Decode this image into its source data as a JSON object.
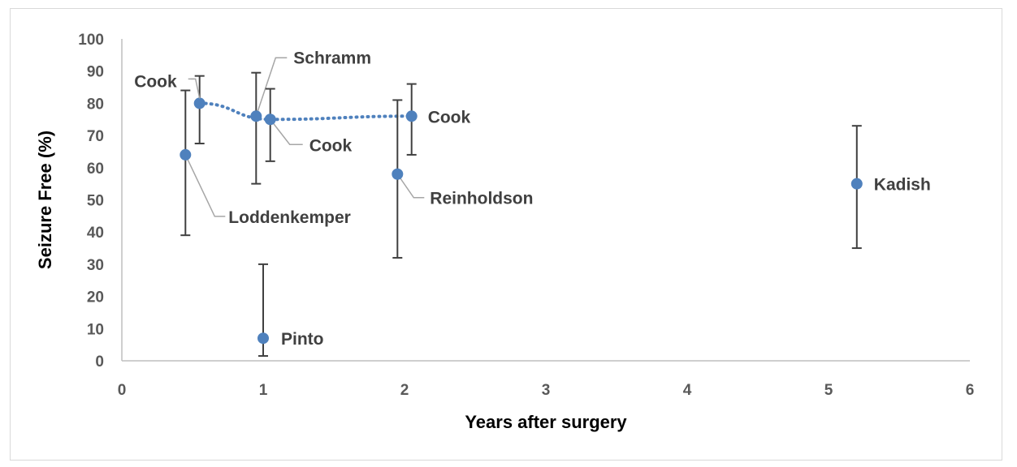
{
  "chart_data": {
    "type": "scatter",
    "title": "",
    "xlabel": "Years after surgery",
    "ylabel": "Seizure Free (%)",
    "xlim": [
      0,
      6
    ],
    "ylim": [
      0,
      100
    ],
    "x_ticks": [
      "0",
      "1",
      "2",
      "3",
      "4",
      "5",
      "6"
    ],
    "y_ticks": [
      "0",
      "10",
      "20",
      "30",
      "40",
      "50",
      "60",
      "70",
      "80",
      "90",
      "100"
    ],
    "grid": false,
    "legend": "none",
    "points": [
      {
        "label": "Cook",
        "x": 0.55,
        "y": 80,
        "err_low": 67.5,
        "err_high": 88.5
      },
      {
        "label": "Loddenkemper",
        "x": 0.45,
        "y": 64,
        "err_low": 39,
        "err_high": 84
      },
      {
        "label": "Schramm",
        "x": 0.95,
        "y": 76,
        "err_low": 55,
        "err_high": 89.5
      },
      {
        "label": "Cook",
        "x": 1.05,
        "y": 75,
        "err_low": 62,
        "err_high": 84.5
      },
      {
        "label": "Pinto",
        "x": 1.0,
        "y": 7,
        "err_low": 1.5,
        "err_high": 30
      },
      {
        "label": "Reinholdson",
        "x": 1.95,
        "y": 58,
        "err_low": 32,
        "err_high": 81
      },
      {
        "label": "Cook",
        "x": 2.05,
        "y": 76,
        "err_low": 64,
        "err_high": 86
      },
      {
        "label": "Kadish",
        "x": 5.2,
        "y": 55,
        "err_low": 35,
        "err_high": 73
      }
    ],
    "trend_line": {
      "style": "dotted",
      "x": [
        0.55,
        1.05,
        2.05
      ],
      "y": [
        80,
        75,
        76
      ]
    },
    "colors": {
      "marker": "#4f81bd",
      "trend": "#4f81bd",
      "error_bar": "#404040",
      "leader": "#a6a6a6"
    }
  }
}
